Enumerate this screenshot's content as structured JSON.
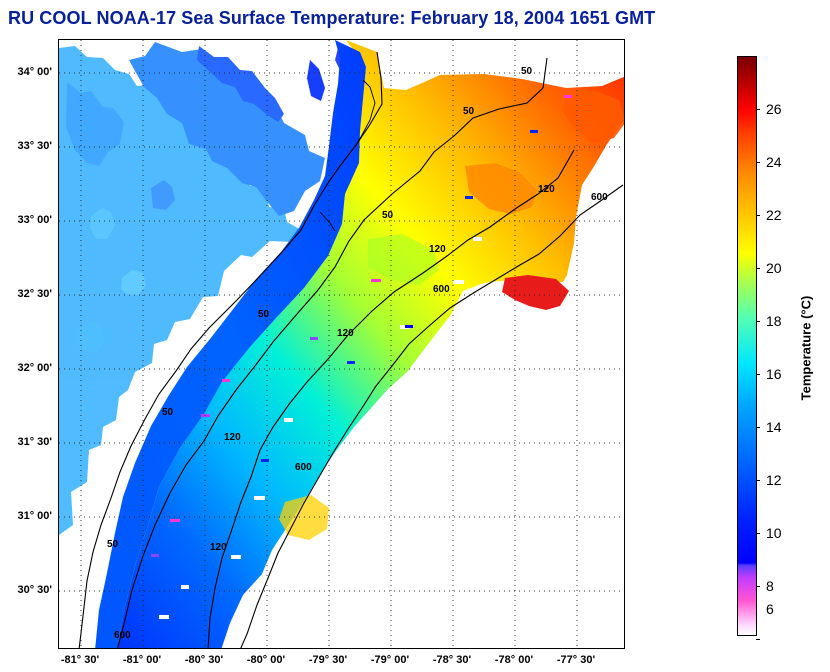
{
  "title": "RU COOL  NOAA-17  Sea Surface Temperature:  February 18, 2004 1651 GMT",
  "map": {
    "latitude_ticks": [
      "34° 00'",
      "33° 30'",
      "33° 00'",
      "32° 30'",
      "32° 00'",
      "31° 30'",
      "31° 00'",
      "30° 30'"
    ],
    "longitude_ticks": [
      "-81° 30'",
      "-81° 00'",
      "-80° 30'",
      "-80° 00'",
      "-79° 30'",
      "-79° 00'",
      "-78° 30'",
      "-78° 00'",
      "-77° 30'"
    ],
    "contour_labels": [
      "50",
      "50",
      "50",
      "50",
      "50",
      "50",
      "120",
      "120",
      "120",
      "120",
      "120",
      "600",
      "600",
      "600",
      "600"
    ],
    "colorbar": {
      "title": "Temperature (°C)",
      "ticks": [
        "26",
        "24",
        "22",
        "20",
        "18",
        "16",
        "14",
        "12",
        "10",
        "8",
        "6"
      ],
      "min": 5,
      "max": 27
    }
  }
}
